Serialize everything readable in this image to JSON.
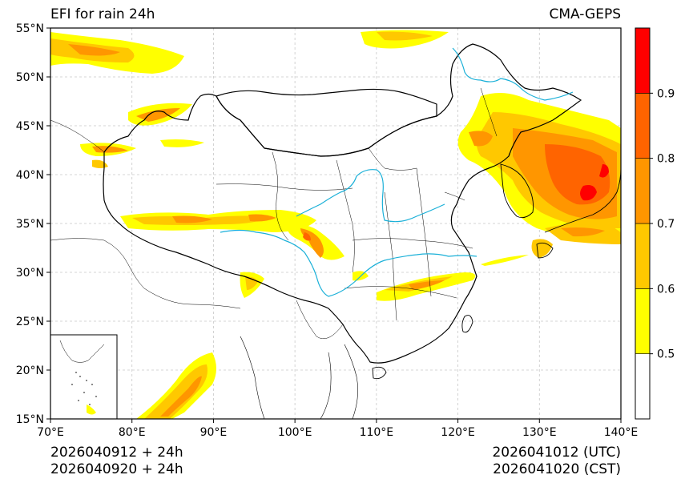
{
  "title_left": "EFI for rain 24h",
  "title_right": "CMA-GEPS",
  "footer": {
    "init_utc": "2026040912 + 24h",
    "init_cst": "2026040920 + 24h",
    "valid_utc": "2026041012 (UTC)",
    "valid_cst": "2026041020 (CST)"
  },
  "map": {
    "lon_ticks": [
      "70°E",
      "80°E",
      "90°E",
      "100°E",
      "110°E",
      "120°E",
      "130°E",
      "140°E"
    ],
    "lat_ticks": [
      "15°N",
      "20°N",
      "25°N",
      "30°N",
      "35°N",
      "40°N",
      "45°N",
      "50°N",
      "55°N"
    ],
    "lon_range": [
      70,
      140
    ],
    "lat_range": [
      15,
      55
    ],
    "gridlines": true
  },
  "colorbar": {
    "levels": [
      "0.5",
      "0.6",
      "0.7",
      "0.8",
      "0.9"
    ],
    "colors": [
      "#ffffff",
      "#ffff00",
      "#ffc800",
      "#ff9600",
      "#ff6400",
      "#ff0000"
    ]
  },
  "colors": {
    "river": "#1ab0d8",
    "border": "#000000",
    "grid": "#c8c8c8"
  }
}
